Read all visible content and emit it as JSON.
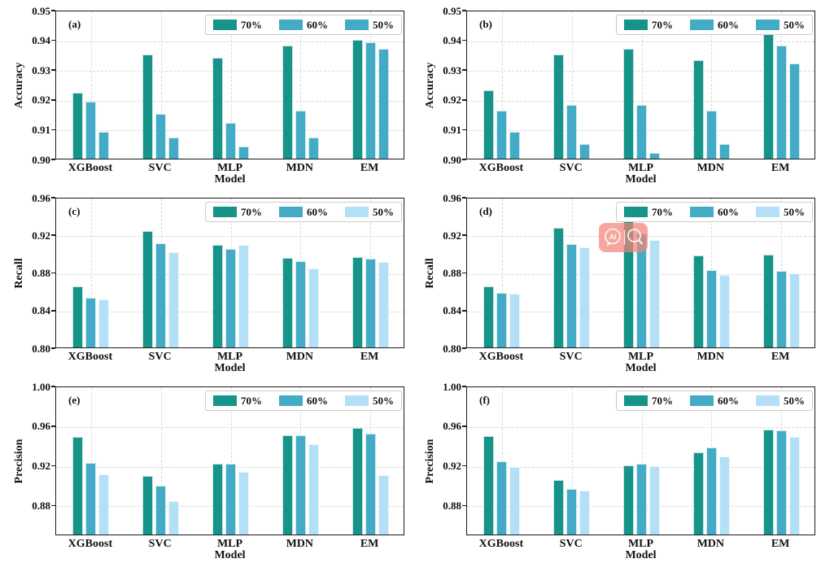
{
  "figure": {
    "title": "",
    "xlabel": "Model",
    "categories": [
      "XGBoost",
      "SVC",
      "MLP",
      "MDN",
      "EM"
    ],
    "legend_labels": [
      "70%",
      "60%",
      "50%"
    ],
    "colors": {
      "teal_70": "#16948a",
      "blue_60": "#44abc7",
      "light_blue_50": "#b3dff7",
      "grid": "#d9d9d9",
      "spine": "#1a1a1a"
    }
  },
  "watermark": {
    "panel": "(d)",
    "badge_color": "#f2847a",
    "ai_label": "AI",
    "icons": [
      "ai-chat-bubble-icon",
      "magnifier-icon"
    ]
  },
  "chart_data": [
    {
      "panel": "(a)",
      "type": "bar",
      "ylabel": "Accuracy",
      "xlabel": "Model",
      "categories": [
        "XGBoost",
        "SVC",
        "MLP",
        "MDN",
        "EM"
      ],
      "ylim": [
        0.9,
        0.95
      ],
      "ytick_values": [
        0.9,
        0.91,
        0.92,
        0.93,
        0.94,
        0.95
      ],
      "ytick_labels": [
        "0.90",
        "0.91",
        "0.92",
        "0.93",
        "0.94",
        "0.95"
      ],
      "grid": true,
      "legend_position": "upper right",
      "watermark": false,
      "series": [
        {
          "name": "70%",
          "color": "#16948a",
          "values": [
            0.922,
            0.935,
            0.934,
            0.938,
            0.94
          ]
        },
        {
          "name": "60%",
          "color": "#44abc7",
          "values": [
            0.919,
            0.915,
            0.912,
            0.916,
            0.939
          ]
        },
        {
          "name": "50%",
          "color": "#44abc7",
          "values": [
            0.909,
            0.907,
            0.904,
            0.907,
            0.937
          ]
        }
      ]
    },
    {
      "panel": "(b)",
      "type": "bar",
      "ylabel": "Accuracy",
      "xlabel": "Model",
      "categories": [
        "XGBoost",
        "SVC",
        "MLP",
        "MDN",
        "EM"
      ],
      "ylim": [
        0.9,
        0.95
      ],
      "ytick_values": [
        0.9,
        0.91,
        0.92,
        0.93,
        0.94,
        0.95
      ],
      "ytick_labels": [
        "0.90",
        "0.91",
        "0.92",
        "0.93",
        "0.94",
        "0.95"
      ],
      "grid": true,
      "legend_position": "upper right",
      "watermark": false,
      "series": [
        {
          "name": "70%",
          "color": "#16948a",
          "values": [
            0.923,
            0.935,
            0.937,
            0.933,
            0.942
          ]
        },
        {
          "name": "60%",
          "color": "#44abc7",
          "values": [
            0.916,
            0.918,
            0.918,
            0.916,
            0.938
          ]
        },
        {
          "name": "50%",
          "color": "#44abc7",
          "values": [
            0.909,
            0.905,
            0.902,
            0.905,
            0.932
          ]
        }
      ]
    },
    {
      "panel": "(c)",
      "type": "bar",
      "ylabel": "Recall",
      "xlabel": "Model",
      "categories": [
        "XGBoost",
        "SVC",
        "MLP",
        "MDN",
        "EM"
      ],
      "ylim": [
        0.8,
        0.96
      ],
      "ytick_values": [
        0.8,
        0.84,
        0.88,
        0.92,
        0.96
      ],
      "ytick_labels": [
        "0.80",
        "0.84",
        "0.88",
        "0.92",
        "0.96"
      ],
      "grid": true,
      "legend_position": "upper right",
      "watermark": false,
      "series": [
        {
          "name": "70%",
          "color": "#16948a",
          "values": [
            0.865,
            0.924,
            0.909,
            0.895,
            0.896
          ]
        },
        {
          "name": "60%",
          "color": "#44abc7",
          "values": [
            0.853,
            0.911,
            0.905,
            0.892,
            0.894
          ]
        },
        {
          "name": "50%",
          "color": "#b3dff7",
          "values": [
            0.851,
            0.901,
            0.909,
            0.884,
            0.891
          ]
        }
      ]
    },
    {
      "panel": "(d)",
      "type": "bar",
      "ylabel": "Recall",
      "xlabel": "Model",
      "categories": [
        "XGBoost",
        "SVC",
        "MLP",
        "MDN",
        "EM"
      ],
      "ylim": [
        0.8,
        0.96
      ],
      "ytick_values": [
        0.8,
        0.84,
        0.88,
        0.92,
        0.96
      ],
      "ytick_labels": [
        "0.80",
        "0.84",
        "0.88",
        "0.92",
        "0.96"
      ],
      "grid": true,
      "legend_position": "upper right",
      "watermark": true,
      "series": [
        {
          "name": "70%",
          "color": "#16948a",
          "values": [
            0.865,
            0.927,
            0.937,
            0.898,
            0.899
          ]
        },
        {
          "name": "60%",
          "color": "#44abc7",
          "values": [
            0.858,
            0.91,
            0.921,
            0.882,
            0.881
          ]
        },
        {
          "name": "50%",
          "color": "#b3dff7",
          "values": [
            0.857,
            0.906,
            0.914,
            0.877,
            0.879
          ]
        }
      ]
    },
    {
      "panel": "(e)",
      "type": "bar",
      "ylabel": "Precision",
      "xlabel": "Model",
      "categories": [
        "XGBoost",
        "SVC",
        "MLP",
        "MDN",
        "EM"
      ],
      "ylim": [
        0.85,
        1.0
      ],
      "ytick_values": [
        0.88,
        0.92,
        0.96,
        1.0
      ],
      "ytick_labels": [
        "0.88",
        "0.92",
        "0.96",
        "1.00"
      ],
      "grid": true,
      "legend_position": "upper right",
      "watermark": false,
      "series": [
        {
          "name": "70%",
          "color": "#16948a",
          "values": [
            0.948,
            0.909,
            0.921,
            0.95,
            0.957
          ]
        },
        {
          "name": "60%",
          "color": "#44abc7",
          "values": [
            0.922,
            0.899,
            0.921,
            0.95,
            0.952
          ]
        },
        {
          "name": "50%",
          "color": "#b3dff7",
          "values": [
            0.911,
            0.884,
            0.913,
            0.941,
            0.91
          ]
        }
      ]
    },
    {
      "panel": "(f)",
      "type": "bar",
      "ylabel": "Precision",
      "xlabel": "Model",
      "categories": [
        "XGBoost",
        "SVC",
        "MLP",
        "MDN",
        "EM"
      ],
      "ylim": [
        0.85,
        1.0
      ],
      "ytick_values": [
        0.88,
        0.92,
        0.96,
        1.0
      ],
      "ytick_labels": [
        "0.88",
        "0.92",
        "0.96",
        "1.00"
      ],
      "grid": true,
      "legend_position": "upper right",
      "watermark": false,
      "series": [
        {
          "name": "70%",
          "color": "#16948a",
          "values": [
            0.949,
            0.905,
            0.92,
            0.933,
            0.956
          ]
        },
        {
          "name": "60%",
          "color": "#44abc7",
          "values": [
            0.924,
            0.896,
            0.921,
            0.938,
            0.955
          ]
        },
        {
          "name": "50%",
          "color": "#b3dff7",
          "values": [
            0.918,
            0.894,
            0.919,
            0.929,
            0.948
          ]
        }
      ]
    }
  ]
}
